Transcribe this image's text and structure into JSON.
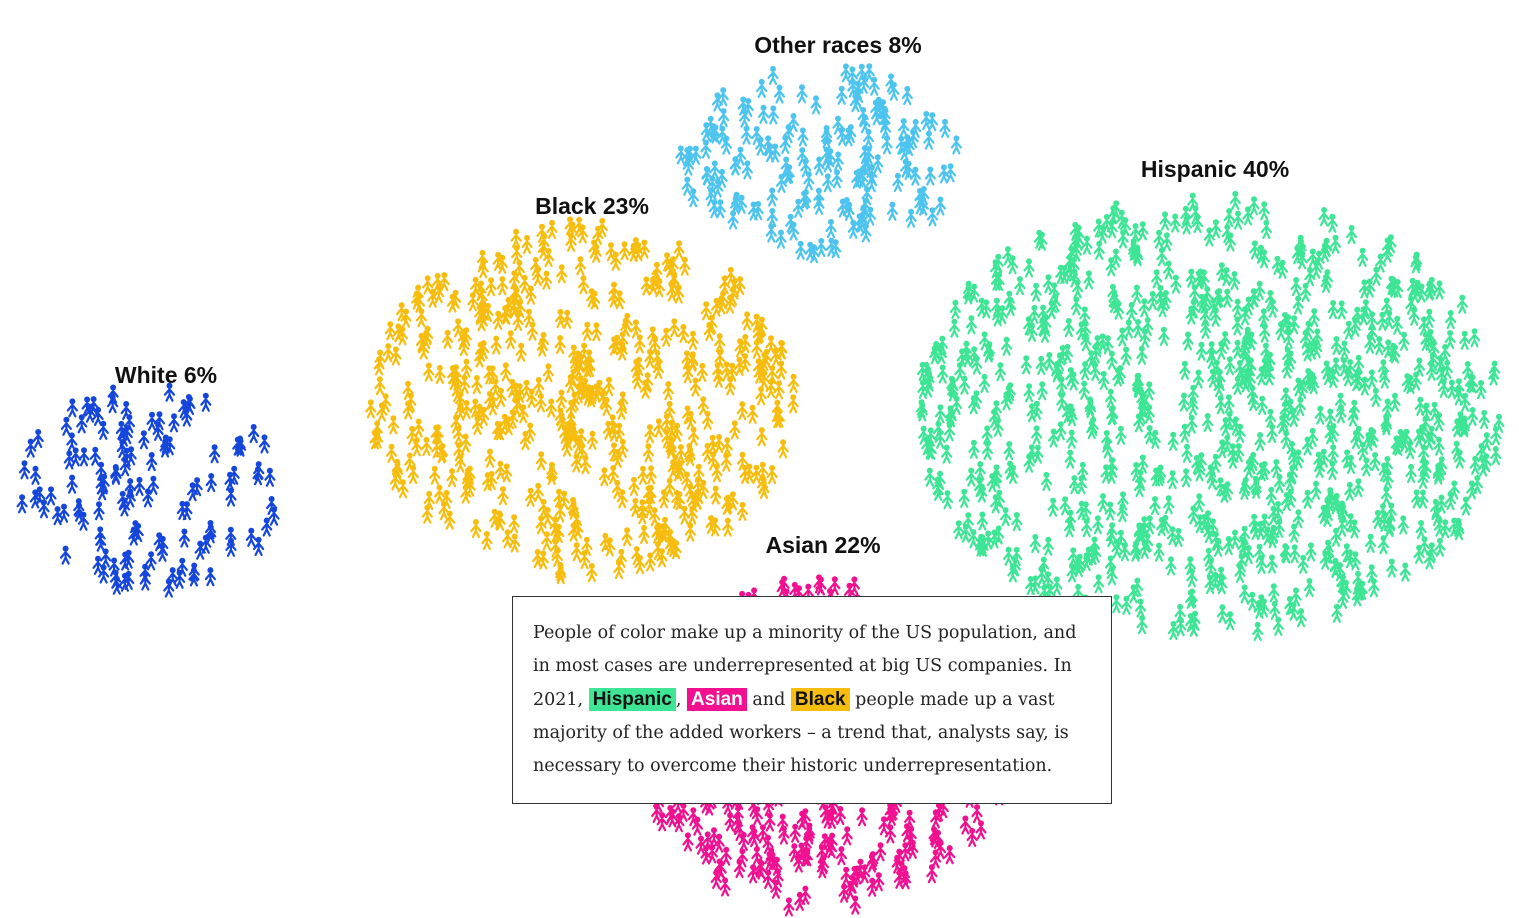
{
  "chart_data": {
    "type": "scatter",
    "title": "",
    "groups": [
      {
        "name": "White",
        "label": "White 6%",
        "percent": 6,
        "color": "#1546dc"
      },
      {
        "name": "Black",
        "label": "Black 23%",
        "percent": 23,
        "color": "#f6bd0f"
      },
      {
        "name": "Other races",
        "label": "Other races 8%",
        "percent": 8,
        "color": "#4dc4ee"
      },
      {
        "name": "Hispanic",
        "label": "Hispanic 40%",
        "percent": 40,
        "color": "#3de595"
      },
      {
        "name": "Asian",
        "label": "Asian 22%",
        "percent": 22,
        "color": "#f01090"
      }
    ]
  },
  "annotation": {
    "text_before": "People of color make up a minority of the US population, and in most cases are underrepresented at big US companies. In 2021,",
    "comma1": ",",
    "and_word": "and",
    "text_after": "people made up a vast majority of the added workers – a trend that, analysts say, is necessary to overcome their historic underrepresentation.",
    "highlights": [
      {
        "label": "Hispanic",
        "color": "#3de595",
        "text_color": "#111111"
      },
      {
        "label": "Asian",
        "color": "#f01090",
        "text_color": "#ffffff"
      },
      {
        "label": "Black",
        "color": "#f6bd0f",
        "text_color": "#111111"
      }
    ]
  }
}
